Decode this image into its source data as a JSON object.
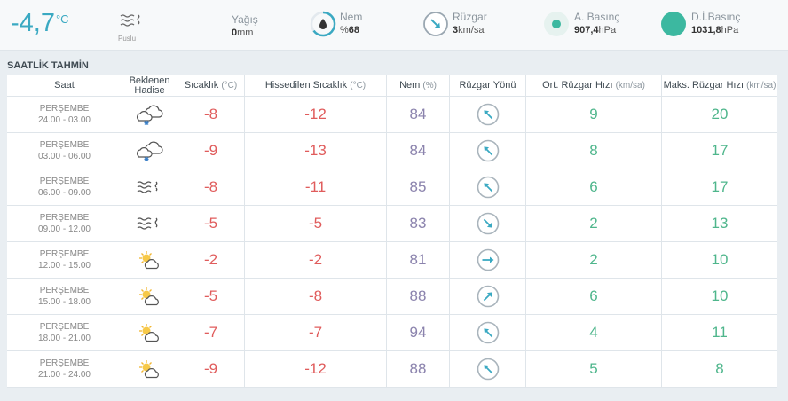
{
  "current": {
    "temperature": "-4,7",
    "unit": "°C",
    "condition_label": "Puslu",
    "precip_label": "Yağış",
    "precip_value": "0",
    "precip_unit": "mm",
    "humidity_label": "Nem",
    "humidity_prefix": "%",
    "humidity_value": "68",
    "wind_label": "Rüzgar",
    "wind_value": "3",
    "wind_unit": "km/sa",
    "pressure_label": "A. Basınç",
    "pressure_value": "907,4",
    "pressure_unit": "hPa",
    "sea_pressure_label": "D.İ.Basınç",
    "sea_pressure_value": "1031,8",
    "sea_pressure_unit": "hPa"
  },
  "colors": {
    "accent": "#3aa9c2",
    "temp": "#e05c5c",
    "humidity": "#8b83ad",
    "speed": "#4fb68c",
    "wind_arrow": "#3aa9c2",
    "pressure": "#3cb8a0"
  },
  "section_title": "SAATLİK TAHMİN",
  "headers": {
    "time": "Saat",
    "event": "Beklenen Hadise",
    "temp": "Sıcaklık",
    "temp_unit": "(°C)",
    "feels": "Hissedilen Sıcaklık",
    "feels_unit": "(°C)",
    "humidity": "Nem",
    "humidity_unit": "(%)",
    "wind_dir": "Rüzgar Yönü",
    "avg_wind": "Ort. Rüzgar Hızı",
    "avg_wind_unit": "(km/sa)",
    "max_wind": "Maks. Rüzgar Hızı",
    "max_wind_unit": "(km/sa)"
  },
  "rows": [
    {
      "day": "PERŞEMBE",
      "time": "24.00 - 03.00",
      "icon": "snow-cloud-icon",
      "temp": "-8",
      "feels": "-12",
      "humidity": "84",
      "wind_deg": 135,
      "avg": "9",
      "max": "20"
    },
    {
      "day": "PERŞEMBE",
      "time": "03.00 - 06.00",
      "icon": "snow-cloud-icon",
      "temp": "-9",
      "feels": "-13",
      "humidity": "84",
      "wind_deg": 135,
      "avg": "8",
      "max": "17"
    },
    {
      "day": "PERŞEMBE",
      "time": "06.00 - 09.00",
      "icon": "fog-icon",
      "temp": "-8",
      "feels": "-11",
      "humidity": "85",
      "wind_deg": 135,
      "avg": "6",
      "max": "17"
    },
    {
      "day": "PERŞEMBE",
      "time": "09.00 - 12.00",
      "icon": "fog-icon",
      "temp": "-5",
      "feels": "-5",
      "humidity": "83",
      "wind_deg": 315,
      "avg": "2",
      "max": "13"
    },
    {
      "day": "PERŞEMBE",
      "time": "12.00 - 15.00",
      "icon": "partly-cloudy-icon",
      "temp": "-2",
      "feels": "-2",
      "humidity": "81",
      "wind_deg": 270,
      "avg": "2",
      "max": "10"
    },
    {
      "day": "PERŞEMBE",
      "time": "15.00 - 18.00",
      "icon": "partly-cloudy-icon",
      "temp": "-5",
      "feels": "-8",
      "humidity": "88",
      "wind_deg": 225,
      "avg": "6",
      "max": "10"
    },
    {
      "day": "PERŞEMBE",
      "time": "18.00 - 21.00",
      "icon": "partly-cloudy-icon",
      "temp": "-7",
      "feels": "-7",
      "humidity": "94",
      "wind_deg": 135,
      "avg": "4",
      "max": "11"
    },
    {
      "day": "PERŞEMBE",
      "time": "21.00 - 24.00",
      "icon": "partly-cloudy-icon",
      "temp": "-9",
      "feels": "-12",
      "humidity": "88",
      "wind_deg": 135,
      "avg": "5",
      "max": "8"
    }
  ]
}
